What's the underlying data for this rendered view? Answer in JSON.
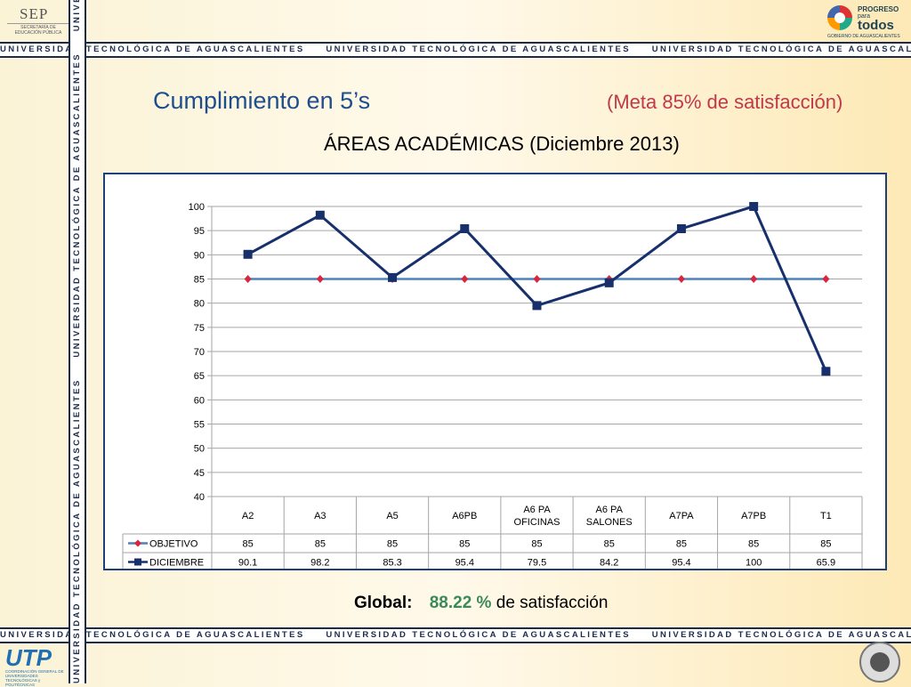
{
  "header": {
    "sep_logo": "SEP",
    "sep_sub": "SECRETARÍA DE EDUCACIÓN PÚBLICA",
    "progreso_logo": [
      "PROGRESO",
      "para",
      "todos",
      "GOBIERNO DE AGUASCALIENTES"
    ],
    "banner_text": "UNIVERSIDAD TECNOLÓGICA DE AGUASCALIENTES"
  },
  "slide": {
    "title": "Cumplimiento en 5’s",
    "meta": "(Meta 85% de satisfacción)",
    "subtitle": "ÁREAS ACADÉMICAS (Diciembre 2013)"
  },
  "global": {
    "label": "Global:",
    "value": "88.22 %",
    "suffix": "de satisfacción"
  },
  "footer": {
    "utp_logo": "UTP",
    "utp_sub": "COORDINACIÓN GENERAL DE UNIVERSIDADES TECNOLÓGICAS y POLITÉCNICAS"
  },
  "chart_data": {
    "type": "line",
    "categories": [
      "A2",
      "A3",
      "A5",
      "A6PB",
      "A6 PA OFICINAS",
      "A6 PA SALONES",
      "A7PA",
      "A7PB",
      "T1"
    ],
    "category_lines": [
      [
        "A2"
      ],
      [
        "A3"
      ],
      [
        "A5"
      ],
      [
        "A6PB"
      ],
      [
        "A6 PA",
        "OFICINAS"
      ],
      [
        "A6 PA",
        "SALONES"
      ],
      [
        "A7PA"
      ],
      [
        "A7PB"
      ],
      [
        "T1"
      ]
    ],
    "series": [
      {
        "name": "OBJETIVO",
        "values": [
          85,
          85,
          85,
          85,
          85,
          85,
          85,
          85,
          85
        ],
        "display": [
          "85",
          "85",
          "85",
          "85",
          "85",
          "85",
          "85",
          "85",
          "85"
        ],
        "color": "#4f81bd",
        "marker_color": "#d7263d",
        "marker": "diamond"
      },
      {
        "name": "DICIEMBRE",
        "values": [
          90.1,
          98.2,
          85.3,
          95.4,
          79.5,
          84.2,
          95.4,
          100,
          65.9
        ],
        "display": [
          "90.1",
          "98.2",
          "85.3",
          "95.4",
          "79.5",
          "84.2",
          "95.4",
          "100",
          "65.9"
        ],
        "color": "#17306b",
        "marker_color": "#17306b",
        "marker": "square"
      }
    ],
    "ylim": [
      40,
      100
    ],
    "yticks": [
      40,
      45,
      50,
      55,
      60,
      65,
      70,
      75,
      80,
      85,
      90,
      95,
      100
    ],
    "grid": true,
    "legend": "data-table"
  }
}
